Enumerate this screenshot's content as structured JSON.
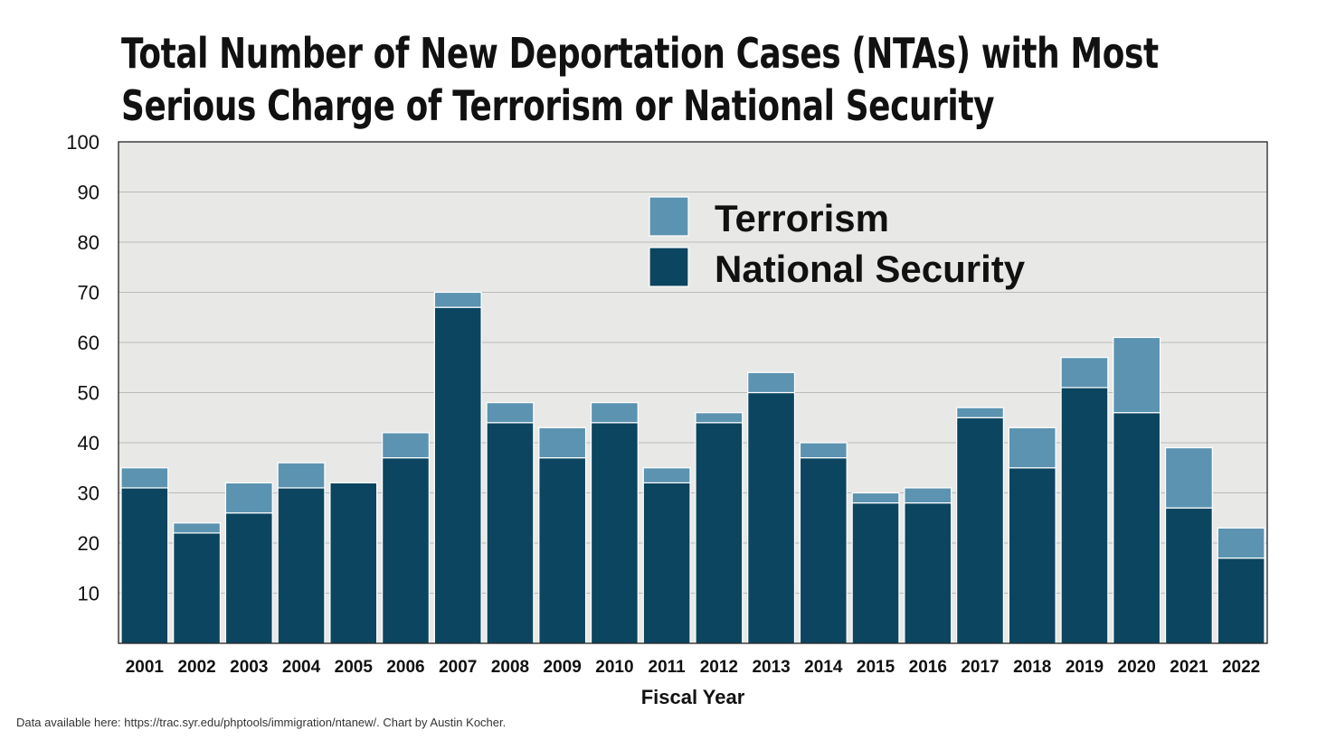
{
  "chart_data": {
    "type": "bar",
    "stacked": true,
    "title_lines": [
      "Total Number of New Deportation Cases (NTAs) with Most",
      "Serious Charge of Terrorism or National Security"
    ],
    "xlabel": "Fiscal Year",
    "ylabel": "",
    "ylim": [
      0,
      100
    ],
    "yticks": [
      10,
      20,
      30,
      40,
      50,
      60,
      70,
      80,
      90,
      100
    ],
    "grid": true,
    "legend_position": "top-right",
    "categories": [
      "2001",
      "2002",
      "2003",
      "2004",
      "2005",
      "2006",
      "2007",
      "2008",
      "2009",
      "2010",
      "2011",
      "2012",
      "2013",
      "2014",
      "2015",
      "2016",
      "2017",
      "2018",
      "2019",
      "2020",
      "2021",
      "2022"
    ],
    "series": [
      {
        "name": "National Security",
        "color": "#0b4560",
        "values": [
          31,
          22,
          26,
          31,
          32,
          37,
          67,
          44,
          37,
          44,
          32,
          44,
          50,
          37,
          28,
          28,
          45,
          35,
          51,
          46,
          27,
          17
        ]
      },
      {
        "name": "Terrorism",
        "color": "#5b93b1",
        "values": [
          4,
          2,
          6,
          5,
          0,
          5,
          3,
          4,
          6,
          4,
          3,
          2,
          4,
          3,
          2,
          3,
          2,
          8,
          6,
          15,
          12,
          6
        ]
      }
    ],
    "legend_order": [
      "Terrorism",
      "National Security"
    ],
    "plot_background": "#e8e9e7",
    "footnote": "Data available here: https://trac.syr.edu/phptools/immigration/ntanew/. Chart by Austin Kocher."
  }
}
